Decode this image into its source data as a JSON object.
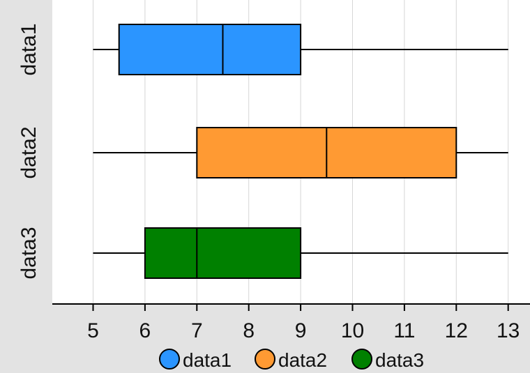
{
  "chart_data": {
    "type": "boxplot",
    "orientation": "horizontal",
    "x_ticks": [
      "5",
      "6",
      "7",
      "8",
      "9",
      "10",
      "11",
      "12",
      "13"
    ],
    "xlim": [
      4.2,
      13.4
    ],
    "grid": true,
    "legend_position": "bottom",
    "series": [
      {
        "name": "data1",
        "color": "#2b95ff",
        "min": 5,
        "q1": 5.5,
        "median": 7.5,
        "q3": 9,
        "max": 13
      },
      {
        "name": "data2",
        "color": "#ff9a33",
        "min": 5,
        "q1": 7,
        "median": 9.5,
        "q3": 12,
        "max": 13
      },
      {
        "name": "data3",
        "color": "#008000",
        "min": 5,
        "q1": 6,
        "median": 7,
        "q3": 9,
        "max": 13
      }
    ]
  }
}
